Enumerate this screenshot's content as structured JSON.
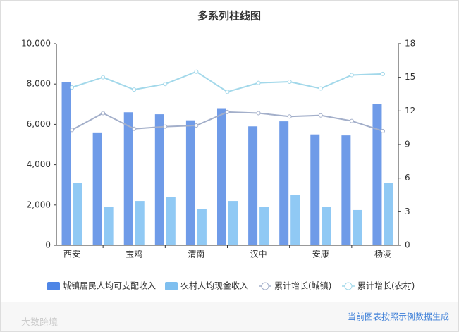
{
  "chart_data": {
    "type": "bar_line",
    "title": "多系列柱线图",
    "categories": [
      "西安",
      null,
      "宝鸡",
      null,
      "渭南",
      null,
      "汉中",
      null,
      "安康",
      null,
      "杨凌"
    ],
    "series": [
      {
        "name": "城镇居民人均可支配收入",
        "type": "bar",
        "color": "#6f9be8",
        "legend_color": "#4f86e6",
        "values": [
          8100,
          5600,
          6600,
          6500,
          6200,
          6800,
          5900,
          6150,
          5500,
          5450,
          7000
        ]
      },
      {
        "name": "农村人均现金收入",
        "type": "bar",
        "color": "#90c9f4",
        "legend_color": "#7fbfef",
        "values": [
          3100,
          1900,
          2200,
          2400,
          1800,
          2200,
          1900,
          2500,
          1900,
          1750,
          3100
        ]
      },
      {
        "name": "累计增长(城镇)",
        "type": "line",
        "axis": "y2",
        "color": "#a3afca",
        "values": [
          10.3,
          11.8,
          10.4,
          10.6,
          10.7,
          11.9,
          11.8,
          11.5,
          11.6,
          11.1,
          10.2
        ]
      },
      {
        "name": "累计增长(农村)",
        "type": "line",
        "axis": "y2",
        "color": "#a2d8ea",
        "values": [
          14.1,
          15.0,
          13.9,
          14.4,
          15.5,
          13.7,
          14.5,
          14.6,
          14.0,
          15.2,
          15.3
        ]
      }
    ],
    "ylim": [
      0,
      10000
    ],
    "yticks": [
      0,
      {
        "value": 2000,
        "label": "2,000"
      },
      {
        "value": 4000,
        "label": "4,000"
      },
      {
        "value": 6000,
        "label": "6,000"
      },
      {
        "value": 8000,
        "label": "8,000"
      },
      {
        "value": 10000,
        "label": "10,000"
      }
    ],
    "y2lim": [
      0,
      18
    ],
    "y2ticks": [
      0,
      3,
      6,
      9,
      12,
      15,
      18
    ],
    "legend": "bottom",
    "footer_note": "当前图表按照示例数据生成",
    "watermark": "大数跨境"
  }
}
